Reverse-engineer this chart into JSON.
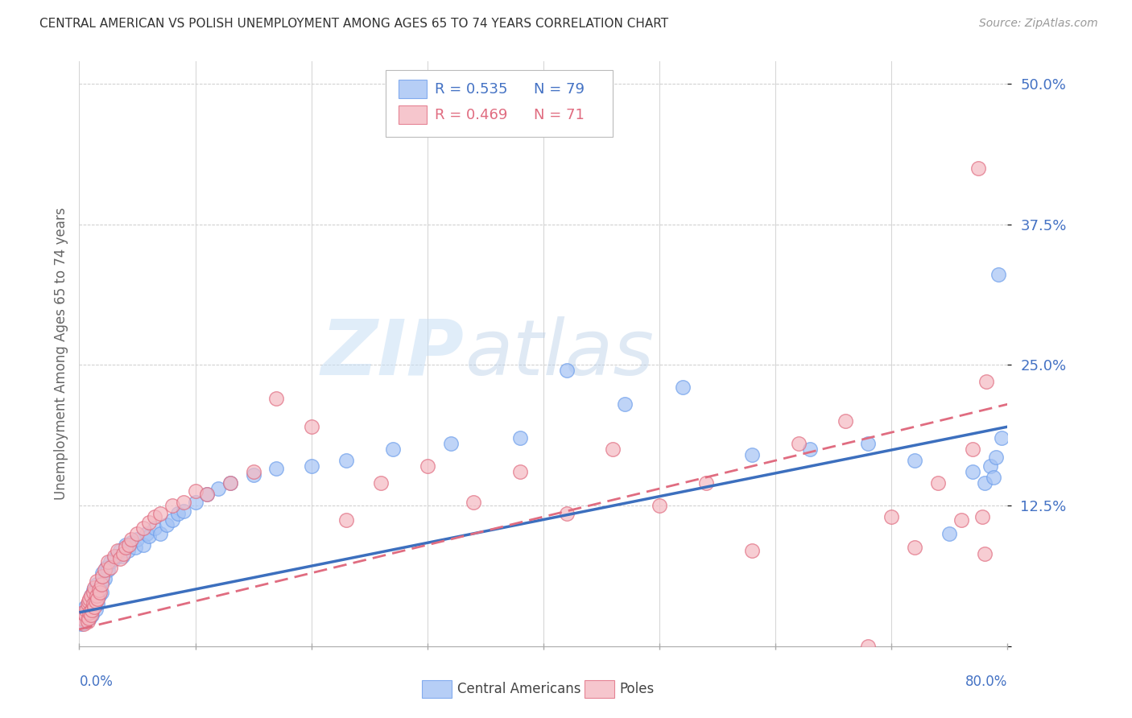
{
  "title": "CENTRAL AMERICAN VS POLISH UNEMPLOYMENT AMONG AGES 65 TO 74 YEARS CORRELATION CHART",
  "source": "Source: ZipAtlas.com",
  "ylabel": "Unemployment Among Ages 65 to 74 years",
  "xlim": [
    0.0,
    0.8
  ],
  "ylim": [
    0.0,
    0.52
  ],
  "yticks": [
    0.0,
    0.125,
    0.25,
    0.375,
    0.5
  ],
  "ytick_labels": [
    "",
    "12.5%",
    "25.0%",
    "37.5%",
    "50.0%"
  ],
  "grid_color": "#cccccc",
  "background_color": "#ffffff",
  "blue_color": "#a4c2f4",
  "pink_color": "#f4b8c1",
  "blue_edge_color": "#6d9eeb",
  "pink_edge_color": "#e06c80",
  "blue_line_color": "#3c6fbe",
  "pink_line_color": "#e06c80",
  "watermark_zip": "ZIP",
  "watermark_atlas": "atlas",
  "blue_scatter_x": [
    0.002,
    0.003,
    0.004,
    0.005,
    0.005,
    0.006,
    0.007,
    0.007,
    0.008,
    0.008,
    0.009,
    0.009,
    0.01,
    0.01,
    0.011,
    0.011,
    0.012,
    0.012,
    0.013,
    0.013,
    0.014,
    0.014,
    0.015,
    0.015,
    0.016,
    0.016,
    0.017,
    0.018,
    0.019,
    0.02,
    0.02,
    0.022,
    0.023,
    0.025,
    0.027,
    0.03,
    0.032,
    0.035,
    0.037,
    0.04,
    0.042,
    0.045,
    0.048,
    0.05,
    0.055,
    0.058,
    0.06,
    0.065,
    0.07,
    0.075,
    0.08,
    0.085,
    0.09,
    0.1,
    0.11,
    0.12,
    0.13,
    0.15,
    0.17,
    0.2,
    0.23,
    0.27,
    0.32,
    0.38,
    0.42,
    0.47,
    0.52,
    0.58,
    0.63,
    0.68,
    0.72,
    0.75,
    0.77,
    0.78,
    0.785,
    0.788,
    0.79,
    0.792,
    0.795
  ],
  "blue_scatter_y": [
    0.02,
    0.025,
    0.03,
    0.022,
    0.035,
    0.028,
    0.025,
    0.033,
    0.03,
    0.038,
    0.025,
    0.04,
    0.032,
    0.045,
    0.028,
    0.042,
    0.035,
    0.05,
    0.038,
    0.042,
    0.033,
    0.048,
    0.04,
    0.055,
    0.038,
    0.05,
    0.045,
    0.052,
    0.048,
    0.058,
    0.065,
    0.06,
    0.07,
    0.068,
    0.075,
    0.078,
    0.08,
    0.085,
    0.08,
    0.09,
    0.085,
    0.092,
    0.088,
    0.095,
    0.09,
    0.1,
    0.098,
    0.105,
    0.1,
    0.108,
    0.112,
    0.118,
    0.12,
    0.128,
    0.135,
    0.14,
    0.145,
    0.152,
    0.158,
    0.16,
    0.165,
    0.175,
    0.18,
    0.185,
    0.245,
    0.215,
    0.23,
    0.17,
    0.175,
    0.18,
    0.165,
    0.1,
    0.155,
    0.145,
    0.16,
    0.15,
    0.168,
    0.33,
    0.185
  ],
  "pink_scatter_x": [
    0.002,
    0.003,
    0.004,
    0.005,
    0.006,
    0.007,
    0.007,
    0.008,
    0.008,
    0.009,
    0.009,
    0.01,
    0.01,
    0.011,
    0.012,
    0.012,
    0.013,
    0.013,
    0.014,
    0.015,
    0.015,
    0.016,
    0.017,
    0.018,
    0.019,
    0.02,
    0.022,
    0.025,
    0.027,
    0.03,
    0.033,
    0.035,
    0.038,
    0.04,
    0.043,
    0.045,
    0.05,
    0.055,
    0.06,
    0.065,
    0.07,
    0.08,
    0.09,
    0.1,
    0.11,
    0.13,
    0.15,
    0.17,
    0.2,
    0.23,
    0.26,
    0.3,
    0.34,
    0.38,
    0.42,
    0.46,
    0.5,
    0.54,
    0.58,
    0.62,
    0.66,
    0.68,
    0.7,
    0.72,
    0.74,
    0.76,
    0.77,
    0.775,
    0.778,
    0.78,
    0.782
  ],
  "pink_scatter_y": [
    0.025,
    0.03,
    0.02,
    0.028,
    0.032,
    0.022,
    0.038,
    0.025,
    0.04,
    0.03,
    0.042,
    0.028,
    0.045,
    0.032,
    0.038,
    0.048,
    0.035,
    0.052,
    0.04,
    0.045,
    0.058,
    0.042,
    0.05,
    0.048,
    0.055,
    0.062,
    0.068,
    0.075,
    0.07,
    0.08,
    0.085,
    0.078,
    0.082,
    0.088,
    0.09,
    0.095,
    0.1,
    0.105,
    0.11,
    0.115,
    0.118,
    0.125,
    0.128,
    0.138,
    0.135,
    0.145,
    0.155,
    0.22,
    0.195,
    0.112,
    0.145,
    0.16,
    0.128,
    0.155,
    0.118,
    0.175,
    0.125,
    0.145,
    0.085,
    0.18,
    0.2,
    0.0,
    0.115,
    0.088,
    0.145,
    0.112,
    0.175,
    0.425,
    0.115,
    0.082,
    0.235
  ],
  "blue_line_x0": 0.0,
  "blue_line_y0": 0.03,
  "blue_line_x1": 0.8,
  "blue_line_y1": 0.195,
  "pink_line_x0": 0.0,
  "pink_line_y0": 0.015,
  "pink_line_x1": 0.8,
  "pink_line_y1": 0.215
}
